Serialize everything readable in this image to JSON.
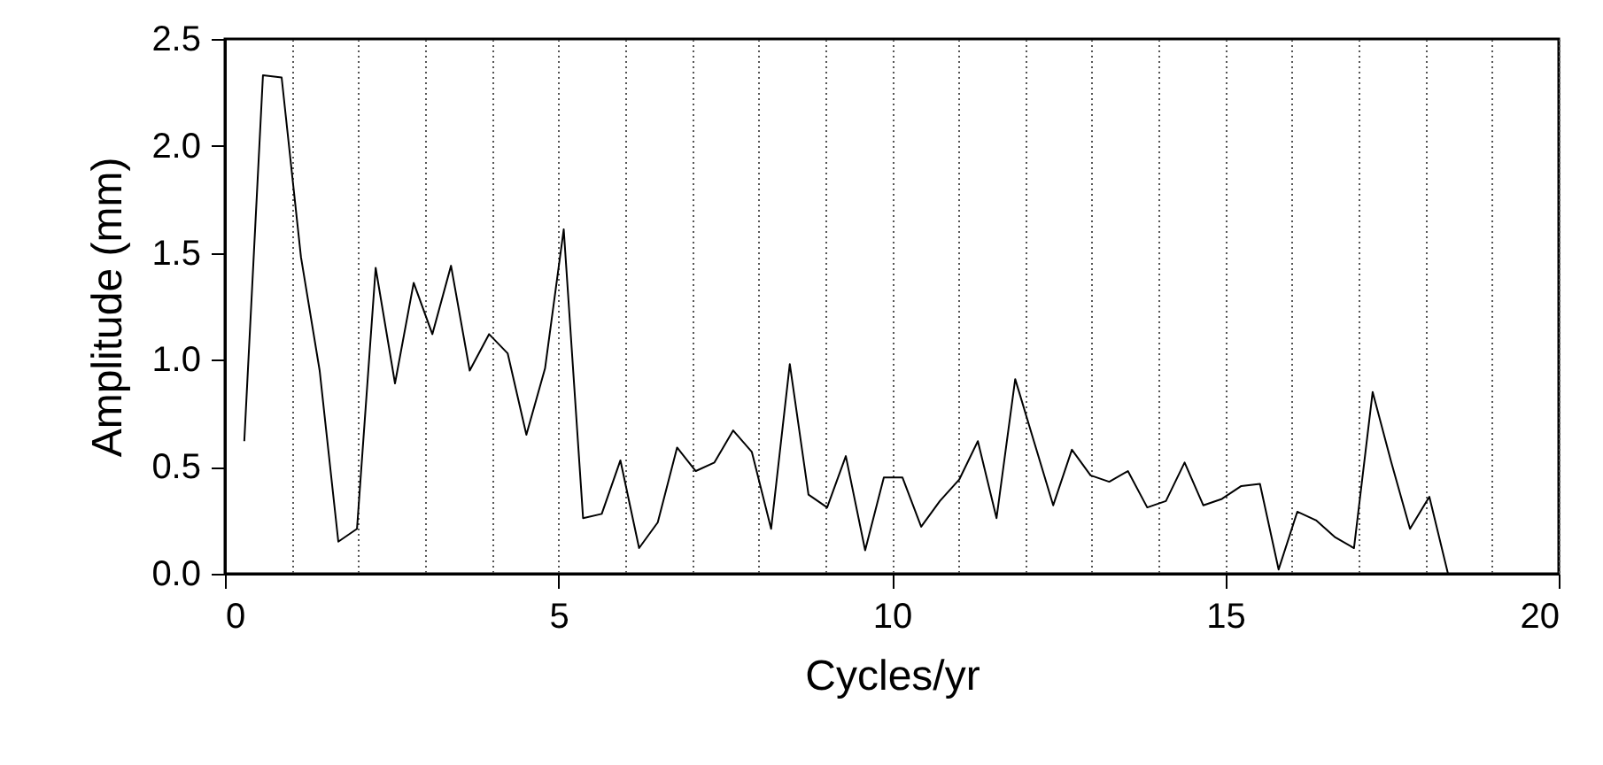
{
  "chart_data": {
    "type": "line",
    "xlabel": "Cycles/yr",
    "ylabel": "Amplitude (mm)",
    "x": [
      0.29,
      0.57,
      0.85,
      1.14,
      1.42,
      1.7,
      1.98,
      2.26,
      2.55,
      2.83,
      3.11,
      3.39,
      3.67,
      3.96,
      4.24,
      4.52,
      4.8,
      5.08,
      5.37,
      5.65,
      5.93,
      6.21,
      6.49,
      6.78,
      7.06,
      7.34,
      7.62,
      7.9,
      8.19,
      8.47,
      8.75,
      9.03,
      9.31,
      9.6,
      9.88,
      10.16,
      10.44,
      10.72,
      11.01,
      11.29,
      11.57,
      11.85,
      12.13,
      12.42,
      12.7,
      12.98,
      13.26,
      13.54,
      13.83,
      14.11,
      14.39,
      14.67,
      14.95,
      15.24,
      15.52,
      15.8,
      16.08,
      16.36,
      16.65,
      16.93,
      17.21,
      17.49,
      17.77,
      18.06,
      18.34
    ],
    "series": [
      {
        "color": "#000000",
        "values": [
          0.62,
          2.33,
          2.32,
          1.48,
          0.95,
          0.15,
          0.21,
          1.43,
          0.89,
          1.36,
          1.12,
          1.44,
          0.95,
          1.12,
          1.03,
          0.65,
          0.96,
          1.61,
          0.26,
          0.28,
          0.53,
          0.12,
          0.24,
          0.59,
          0.48,
          0.52,
          0.67,
          0.57,
          0.21,
          0.98,
          0.37,
          0.31,
          0.55,
          0.11,
          0.45,
          0.45,
          0.22,
          0.34,
          0.44,
          0.62,
          0.26,
          0.91,
          0.62,
          0.32,
          0.58,
          0.46,
          0.43,
          0.48,
          0.31,
          0.34,
          0.52,
          0.32,
          0.35,
          0.41,
          0.42,
          0.02,
          0.29,
          0.25,
          0.17,
          0.12,
          0.85,
          0.52,
          0.21,
          0.36,
          0.0
        ]
      }
    ],
    "xlim": [
      0,
      20
    ],
    "xticks": [
      0,
      {
        "value": 1,
        "label": null
      },
      {
        "value": 2,
        "label": null
      },
      {
        "value": 3,
        "label": null
      },
      {
        "value": 4,
        "label": null
      },
      5,
      {
        "value": 6,
        "label": null
      },
      {
        "value": 7,
        "label": null
      },
      {
        "value": 8,
        "label": null
      },
      {
        "value": 9,
        "label": null
      },
      10,
      {
        "value": 11,
        "label": null
      },
      {
        "value": 12,
        "label": null
      },
      {
        "value": 13,
        "label": null
      },
      {
        "value": 14,
        "label": null
      },
      15,
      {
        "value": 16,
        "label": null
      },
      {
        "value": 17,
        "label": null
      },
      {
        "value": 18,
        "label": null
      },
      {
        "value": 19,
        "label": null
      },
      20
    ],
    "ylim": [
      0,
      2.5
    ],
    "yticks": [
      {
        "value": 0,
        "label": "0.0"
      },
      {
        "value": 0.5,
        "label": "0.5"
      },
      {
        "value": 1,
        "label": "1.0"
      },
      {
        "value": 1.5,
        "label": "1.5"
      },
      {
        "value": 2,
        "label": "2.0"
      },
      {
        "value": 2.5,
        "label": "2.5"
      }
    ],
    "grid": "x",
    "marker": "none",
    "line_style": "solid"
  }
}
